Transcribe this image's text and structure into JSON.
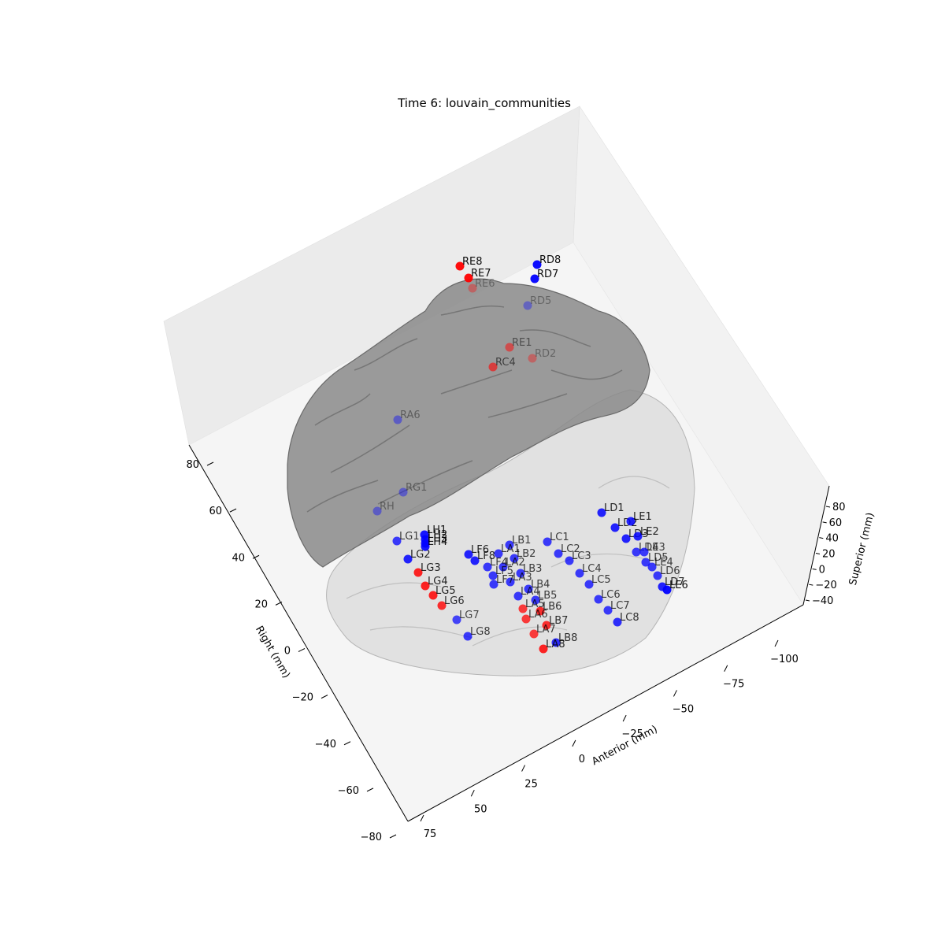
{
  "title": "Time 6: louvain_communities",
  "axes": {
    "right": {
      "label": "Right (mm)",
      "ticks": [
        "80",
        "60",
        "40",
        "20",
        "0",
        "−20",
        "−40",
        "−60",
        "−80"
      ]
    },
    "anterior": {
      "label": "Anterior (mm)",
      "ticks": [
        "75",
        "50",
        "25",
        "0",
        "−25",
        "−50",
        "−75",
        "−100"
      ]
    },
    "superior": {
      "label": "Superior (mm)",
      "ticks": [
        "80",
        "60",
        "40",
        "20",
        "0",
        "−20",
        "−40"
      ]
    }
  },
  "colors": {
    "community_blue": "#0000ff",
    "community_red": "#ff0000",
    "brain_surface": "#8c8c8c",
    "pane": "#f2f2f2"
  },
  "communities": [
    "blue",
    "red"
  ],
  "electrodes": [
    {
      "label": "RE8",
      "community": "red",
      "alpha": 0.95
    },
    {
      "label": "RE7",
      "community": "red",
      "alpha": 0.95
    },
    {
      "label": "RE6",
      "community": "red",
      "alpha": 0.35
    },
    {
      "label": "RD8",
      "community": "blue",
      "alpha": 0.95
    },
    {
      "label": "RD7",
      "community": "blue",
      "alpha": 0.95
    },
    {
      "label": "RD5",
      "community": "blue",
      "alpha": 0.35
    },
    {
      "label": "RD2",
      "community": "red",
      "alpha": 0.35
    },
    {
      "label": "RE1",
      "community": "red",
      "alpha": 0.5
    },
    {
      "label": "RC4",
      "community": "red",
      "alpha": 0.6
    },
    {
      "label": "RH",
      "community": "blue",
      "alpha": 0.4
    },
    {
      "label": "RA6",
      "community": "blue",
      "alpha": 0.4
    },
    {
      "label": "RG1",
      "community": "blue",
      "alpha": 0.4
    },
    {
      "label": "LD1",
      "community": "blue",
      "alpha": 0.85
    },
    {
      "label": "LD2",
      "community": "blue",
      "alpha": 0.85
    },
    {
      "label": "LD3",
      "community": "blue",
      "alpha": 0.85
    },
    {
      "label": "LD4",
      "community": "blue",
      "alpha": 0.75
    },
    {
      "label": "LD5",
      "community": "blue",
      "alpha": 0.75
    },
    {
      "label": "LD6",
      "community": "blue",
      "alpha": 0.75
    },
    {
      "label": "LD7",
      "community": "blue",
      "alpha": 0.85
    },
    {
      "label": "LE1",
      "community": "blue",
      "alpha": 0.85
    },
    {
      "label": "LE2",
      "community": "blue",
      "alpha": 0.85
    },
    {
      "label": "LE3",
      "community": "blue",
      "alpha": 0.75
    },
    {
      "label": "LE4",
      "community": "blue",
      "alpha": 0.75
    },
    {
      "label": "LE6",
      "community": "blue",
      "alpha": 0.95
    },
    {
      "label": "LC1",
      "community": "blue",
      "alpha": 0.75
    },
    {
      "label": "LC2",
      "community": "blue",
      "alpha": 0.75
    },
    {
      "label": "LC3",
      "community": "blue",
      "alpha": 0.75
    },
    {
      "label": "LC4",
      "community": "blue",
      "alpha": 0.75
    },
    {
      "label": "LC5",
      "community": "blue",
      "alpha": 0.75
    },
    {
      "label": "LC6",
      "community": "blue",
      "alpha": 0.75
    },
    {
      "label": "LC7",
      "community": "blue",
      "alpha": 0.75
    },
    {
      "label": "LC8",
      "community": "blue",
      "alpha": 0.8
    },
    {
      "label": "LB1",
      "community": "blue",
      "alpha": 0.75
    },
    {
      "label": "LB2",
      "community": "blue",
      "alpha": 0.75
    },
    {
      "label": "LB3",
      "community": "blue",
      "alpha": 0.75
    },
    {
      "label": "LB4",
      "community": "blue",
      "alpha": 0.75
    },
    {
      "label": "LB5",
      "community": "blue",
      "alpha": 0.75
    },
    {
      "label": "LB6",
      "community": "red",
      "alpha": 0.8
    },
    {
      "label": "LB7",
      "community": "red",
      "alpha": 0.8
    },
    {
      "label": "LB8",
      "community": "blue",
      "alpha": 0.8
    },
    {
      "label": "LA1",
      "community": "blue",
      "alpha": 0.75
    },
    {
      "label": "LA2",
      "community": "blue",
      "alpha": 0.75
    },
    {
      "label": "LA3",
      "community": "blue",
      "alpha": 0.75
    },
    {
      "label": "LA4",
      "community": "blue",
      "alpha": 0.75
    },
    {
      "label": "LA5",
      "community": "red",
      "alpha": 0.75
    },
    {
      "label": "LA6",
      "community": "red",
      "alpha": 0.75
    },
    {
      "label": "LA7",
      "community": "red",
      "alpha": 0.75
    },
    {
      "label": "LA8",
      "community": "red",
      "alpha": 0.85
    },
    {
      "label": "LF4",
      "community": "blue",
      "alpha": 0.75
    },
    {
      "label": "LF5",
      "community": "blue",
      "alpha": 0.75
    },
    {
      "label": "LF6",
      "community": "blue",
      "alpha": 0.85
    },
    {
      "label": "LF7",
      "community": "blue",
      "alpha": 0.75
    },
    {
      "label": "LF8",
      "community": "blue",
      "alpha": 0.85
    },
    {
      "label": "LG1",
      "community": "blue",
      "alpha": 0.75
    },
    {
      "label": "LG2",
      "community": "blue",
      "alpha": 0.85
    },
    {
      "label": "LG3",
      "community": "red",
      "alpha": 0.85
    },
    {
      "label": "LG4",
      "community": "red",
      "alpha": 0.85
    },
    {
      "label": "LG5",
      "community": "red",
      "alpha": 0.85
    },
    {
      "label": "LG6",
      "community": "red",
      "alpha": 0.8
    },
    {
      "label": "LG7",
      "community": "blue",
      "alpha": 0.7
    },
    {
      "label": "LG8",
      "community": "blue",
      "alpha": 0.75
    },
    {
      "label": "LH1",
      "community": "blue",
      "alpha": 0.9
    },
    {
      "label": "LH2",
      "community": "blue",
      "alpha": 0.9
    },
    {
      "label": "LH3",
      "community": "blue",
      "alpha": 0.9
    },
    {
      "label": "LH4",
      "community": "blue",
      "alpha": 0.9
    }
  ]
}
